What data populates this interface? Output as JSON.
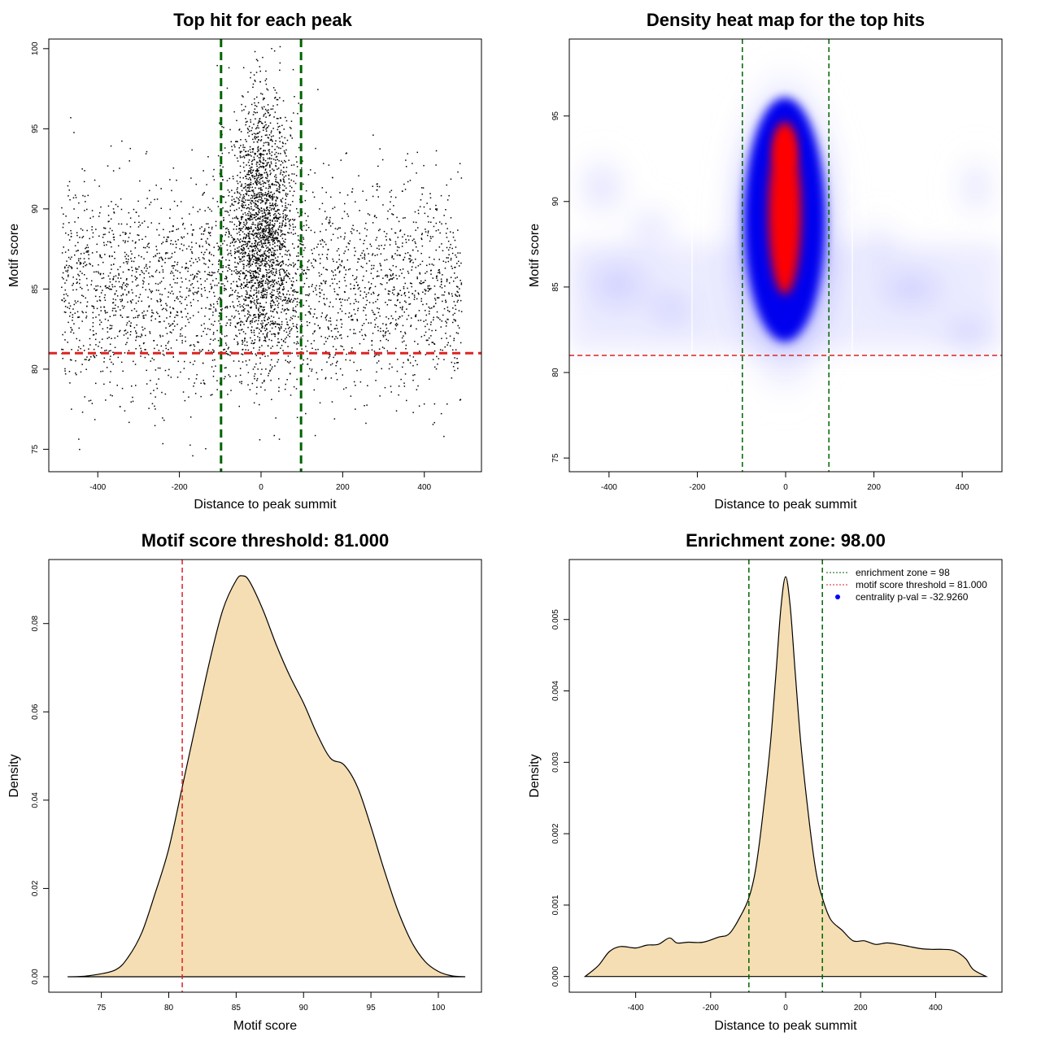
{
  "chart_data": [
    {
      "id": "scatter",
      "type": "scatter",
      "title": "Top hit for each peak",
      "xlabel": "Distance to peak summit",
      "ylabel": "Motif score",
      "xlim": [
        -520,
        540
      ],
      "ylim": [
        73.6,
        100.6
      ],
      "xticks": [
        "-400",
        "-200",
        "0",
        "200",
        "400"
      ],
      "yticks": [
        "75",
        "80",
        "85",
        "90",
        "95",
        "100"
      ],
      "point_color": "#000000",
      "point_count_approx": 5000,
      "distribution": {
        "background_x_range": [
          -490,
          490
        ],
        "background_y_mean": 85,
        "background_y_sd": 3.3,
        "central_x_sd": 40,
        "central_y_mean": 89,
        "central_y_sd": 4
      },
      "vlines": [
        {
          "x": -98,
          "color": "#006400",
          "style": "dashed"
        },
        {
          "x": 98,
          "color": "#006400",
          "style": "dashed"
        }
      ],
      "hlines": [
        {
          "y": 81,
          "color": "#dd2222",
          "style": "dashed"
        }
      ]
    },
    {
      "id": "heatmap",
      "type": "heatmap",
      "title": "Density heat map for the top hits",
      "xlabel": "Distance to peak summit",
      "ylabel": "Motif score",
      "xlim": [
        -490,
        490
      ],
      "ylim": [
        74.2,
        99.5
      ],
      "xticks": [
        "-400",
        "-200",
        "0",
        "200",
        "400"
      ],
      "yticks": [
        "75",
        "80",
        "85",
        "90",
        "95"
      ],
      "colors": [
        "#ffffff",
        "#0000ff",
        "#ff0000"
      ],
      "hotspot": {
        "x": 0,
        "y": 90.5
      },
      "vlines": [
        {
          "x": -98,
          "color": "#006400",
          "style": "dashed"
        },
        {
          "x": 98,
          "color": "#006400",
          "style": "dashed"
        }
      ],
      "hlines": [
        {
          "y": 81,
          "color": "#dd2222",
          "style": "dashed"
        }
      ]
    },
    {
      "id": "density-score",
      "type": "area",
      "title": "Motif score threshold: 81.000",
      "xlabel": "Motif score",
      "ylabel": "Density",
      "xlim": [
        71.1,
        103.2
      ],
      "ylim": [
        -0.0035,
        0.0945
      ],
      "xticks": [
        "75",
        "80",
        "85",
        "90",
        "95",
        "100"
      ],
      "yticks": [
        "0.00",
        "0.02",
        "0.04",
        "0.06",
        "0.08"
      ],
      "fill_color": "#f5deb3",
      "x": [
        72.5,
        74,
        76,
        77,
        78,
        79,
        80,
        81,
        82,
        83,
        84,
        85,
        85.5,
        86,
        87,
        88,
        89,
        90,
        91,
        92,
        93,
        94,
        95,
        96,
        97,
        98,
        99,
        100,
        101,
        102
      ],
      "y": [
        0.0,
        0.0002,
        0.0015,
        0.0045,
        0.01,
        0.019,
        0.029,
        0.043,
        0.057,
        0.071,
        0.083,
        0.0898,
        0.0908,
        0.0895,
        0.083,
        0.075,
        0.068,
        0.062,
        0.055,
        0.0495,
        0.048,
        0.043,
        0.034,
        0.024,
        0.015,
        0.008,
        0.0035,
        0.0012,
        0.0002,
        0.0
      ],
      "vlines": [
        {
          "x": 81,
          "color": "#dd2222",
          "style": "dashed"
        }
      ]
    },
    {
      "id": "density-distance",
      "type": "area",
      "title": "Enrichment zone: 98.00",
      "xlabel": "Distance to peak summit",
      "ylabel": "Density",
      "xlim": [
        -577,
        577
      ],
      "ylim": [
        -0.00022,
        0.00584
      ],
      "xticks": [
        "-400",
        "-200",
        "0",
        "200",
        "400"
      ],
      "yticks": [
        "0.000",
        "0.001",
        "0.002",
        "0.003",
        "0.004",
        "0.005"
      ],
      "fill_color": "#f5deb3",
      "x": [
        -535,
        -500,
        -470,
        -440,
        -400,
        -370,
        -340,
        -310,
        -290,
        -260,
        -220,
        -180,
        -150,
        -120,
        -98,
        -80,
        -60,
        -40,
        -25,
        -12,
        0,
        12,
        25,
        40,
        60,
        80,
        98,
        120,
        150,
        180,
        210,
        240,
        270,
        300,
        330,
        360,
        390,
        420,
        450,
        480,
        500,
        535
      ],
      "y": [
        0.0,
        0.00015,
        0.00035,
        0.00042,
        0.0004,
        0.00044,
        0.00045,
        0.00054,
        0.00047,
        0.00048,
        0.00048,
        0.00055,
        0.0006,
        0.00085,
        0.0011,
        0.0015,
        0.0023,
        0.0033,
        0.0043,
        0.0052,
        0.0056,
        0.0052,
        0.0043,
        0.0033,
        0.0023,
        0.0015,
        0.0011,
        0.0008,
        0.00065,
        0.0005,
        0.0005,
        0.00045,
        0.00047,
        0.00045,
        0.00042,
        0.00039,
        0.00038,
        0.00038,
        0.00036,
        0.00025,
        0.0001,
        0.0
      ],
      "vlines": [
        {
          "x": -98,
          "color": "#006400",
          "style": "dashed"
        },
        {
          "x": 98,
          "color": "#006400",
          "style": "dashed"
        }
      ],
      "legend": {
        "position": "top-right",
        "entries": [
          {
            "label": "enrichment zone = 98",
            "color": "#006400",
            "kind": "dotted-line"
          },
          {
            "label": "motif score threshold = 81.000",
            "color": "#dd2222",
            "kind": "dotted-line"
          },
          {
            "label": "centrality p-val = -32.9260",
            "color": "#0000ff",
            "kind": "point"
          }
        ]
      }
    }
  ]
}
